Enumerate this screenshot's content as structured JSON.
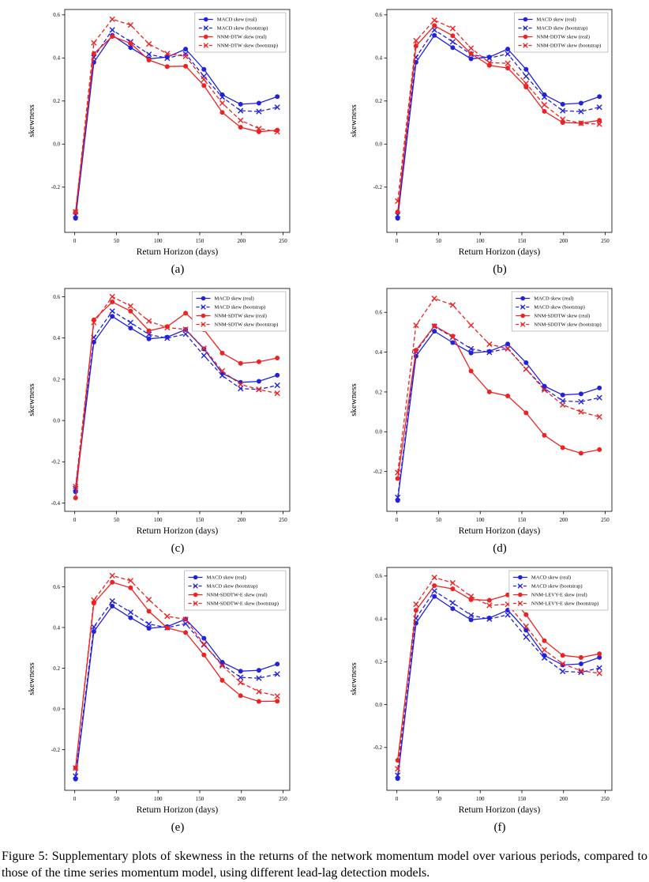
{
  "figure": {
    "caption": "Figure 5: Supplementary plots of skewness in the returns of the network momentum model over various periods, compared to those of the time series momentum model, using different lead-lag detection models.",
    "accent_colors": {
      "macd_blue": "#2222dd",
      "nnm_red": "#ee2222"
    }
  },
  "chart_data": [
    {
      "panel_label": "(a)",
      "type": "line",
      "xlabel": "Return Horizon (days)",
      "ylabel": "skewness",
      "x": [
        1,
        23,
        45,
        67,
        89,
        111,
        133,
        155,
        177,
        199,
        221,
        243
      ],
      "xlim": [
        -12,
        258
      ],
      "ylim": [
        -0.41,
        0.625
      ],
      "xticks": [
        0,
        50,
        100,
        150,
        200,
        250
      ],
      "yticks": [
        -0.2,
        0.0,
        0.2,
        0.4,
        0.6
      ],
      "grid": false,
      "legend_position": "upper right",
      "series": [
        {
          "name": "MACD skew (real)",
          "color": "#2222dd",
          "line": "solid",
          "marker": "circle",
          "values": [
            -0.345,
            0.38,
            0.505,
            0.448,
            0.396,
            0.404,
            0.441,
            0.347,
            0.229,
            0.185,
            0.19,
            0.22
          ]
        },
        {
          "name": "MACD skew (bootstrap)",
          "color": "#2222dd",
          "line": "dashed",
          "marker": "x",
          "values": [
            -0.33,
            0.403,
            0.53,
            0.475,
            0.417,
            0.399,
            0.419,
            0.315,
            0.218,
            0.155,
            0.151,
            0.171
          ]
        },
        {
          "name": "NNM-DTW skew (real)",
          "color": "#ee2222",
          "line": "solid",
          "marker": "circle",
          "values": [
            -0.315,
            0.42,
            0.5,
            0.468,
            0.39,
            0.36,
            0.362,
            0.272,
            0.147,
            0.078,
            0.057,
            0.065
          ]
        },
        {
          "name": "NNM-DTW skew (bootstrap)",
          "color": "#ee2222",
          "line": "dashed",
          "marker": "x",
          "values": [
            -0.315,
            0.47,
            0.58,
            0.553,
            0.465,
            0.42,
            0.408,
            0.3,
            0.19,
            0.11,
            0.072,
            0.057
          ]
        }
      ]
    },
    {
      "panel_label": "(b)",
      "type": "line",
      "xlabel": "Return Horizon (days)",
      "ylabel": "skewness",
      "x": [
        1,
        23,
        45,
        67,
        89,
        111,
        133,
        155,
        177,
        199,
        221,
        243
      ],
      "xlim": [
        -12,
        258
      ],
      "ylim": [
        -0.41,
        0.625
      ],
      "xticks": [
        0,
        50,
        100,
        150,
        200,
        250
      ],
      "yticks": [
        -0.2,
        0.0,
        0.2,
        0.4,
        0.6
      ],
      "grid": false,
      "legend_position": "upper right",
      "series": [
        {
          "name": "MACD skew (real)",
          "color": "#2222dd",
          "line": "solid",
          "marker": "circle",
          "values": [
            -0.345,
            0.38,
            0.505,
            0.448,
            0.396,
            0.404,
            0.441,
            0.347,
            0.229,
            0.185,
            0.19,
            0.22
          ]
        },
        {
          "name": "MACD skew (bootstrap)",
          "color": "#2222dd",
          "line": "dashed",
          "marker": "x",
          "values": [
            -0.33,
            0.403,
            0.53,
            0.475,
            0.417,
            0.399,
            0.419,
            0.315,
            0.218,
            0.155,
            0.151,
            0.171
          ]
        },
        {
          "name": "NNM-DDTW skew (real)",
          "color": "#ee2222",
          "line": "solid",
          "marker": "circle",
          "values": [
            -0.315,
            0.455,
            0.55,
            0.503,
            0.42,
            0.365,
            0.353,
            0.265,
            0.152,
            0.1,
            0.097,
            0.11
          ]
        },
        {
          "name": "NNM-DDTW skew (bootstrap)",
          "color": "#ee2222",
          "line": "dashed",
          "marker": "x",
          "values": [
            -0.265,
            0.48,
            0.575,
            0.537,
            0.445,
            0.378,
            0.375,
            0.282,
            0.182,
            0.115,
            0.097,
            0.092
          ]
        }
      ]
    },
    {
      "panel_label": "(c)",
      "type": "line",
      "xlabel": "Return Horizon (days)",
      "ylabel": "skewness",
      "x": [
        1,
        23,
        45,
        67,
        89,
        111,
        133,
        155,
        177,
        199,
        221,
        243
      ],
      "xlim": [
        -12,
        258
      ],
      "ylim": [
        -0.44,
        0.64
      ],
      "xticks": [
        0,
        50,
        100,
        150,
        200,
        250
      ],
      "yticks": [
        -0.4,
        -0.2,
        0.0,
        0.2,
        0.4,
        0.6
      ],
      "grid": false,
      "legend_position": "upper right",
      "series": [
        {
          "name": "MACD skew (real)",
          "color": "#2222dd",
          "line": "solid",
          "marker": "circle",
          "values": [
            -0.345,
            0.38,
            0.505,
            0.448,
            0.396,
            0.404,
            0.441,
            0.347,
            0.229,
            0.185,
            0.19,
            0.22
          ]
        },
        {
          "name": "MACD skew (bootstrap)",
          "color": "#2222dd",
          "line": "dashed",
          "marker": "x",
          "values": [
            -0.33,
            0.403,
            0.53,
            0.475,
            0.417,
            0.399,
            0.419,
            0.315,
            0.218,
            0.155,
            0.151,
            0.171
          ]
        },
        {
          "name": "NNM-SDTW skew (real)",
          "color": "#ee2222",
          "line": "solid",
          "marker": "circle",
          "values": [
            -0.375,
            0.488,
            0.575,
            0.53,
            0.435,
            0.455,
            0.52,
            0.44,
            0.327,
            0.277,
            0.285,
            0.303
          ]
        },
        {
          "name": "NNM-SDTW skew (bootstrap)",
          "color": "#ee2222",
          "line": "dashed",
          "marker": "x",
          "values": [
            -0.32,
            0.475,
            0.6,
            0.555,
            0.482,
            0.45,
            0.442,
            0.35,
            0.24,
            0.175,
            0.15,
            0.132
          ]
        }
      ]
    },
    {
      "panel_label": "(d)",
      "type": "line",
      "xlabel": "Return Horizon (days)",
      "ylabel": "skewness",
      "x": [
        1,
        23,
        45,
        67,
        89,
        111,
        133,
        155,
        177,
        199,
        221,
        243
      ],
      "xlim": [
        -12,
        258
      ],
      "ylim": [
        -0.4,
        0.72
      ],
      "xticks": [
        0,
        50,
        100,
        150,
        200,
        250
      ],
      "yticks": [
        -0.2,
        0.0,
        0.2,
        0.4,
        0.6
      ],
      "grid": false,
      "legend_position": "upper right",
      "series": [
        {
          "name": "MACD skew (real)",
          "color": "#2222dd",
          "line": "solid",
          "marker": "circle",
          "values": [
            -0.345,
            0.38,
            0.505,
            0.448,
            0.396,
            0.404,
            0.441,
            0.347,
            0.229,
            0.185,
            0.19,
            0.22
          ]
        },
        {
          "name": "MACD skew (bootstrap)",
          "color": "#2222dd",
          "line": "dashed",
          "marker": "x",
          "values": [
            -0.33,
            0.403,
            0.53,
            0.475,
            0.417,
            0.399,
            0.419,
            0.315,
            0.218,
            0.155,
            0.151,
            0.171
          ]
        },
        {
          "name": "NNM-SDDTW skew (real)",
          "color": "#ee2222",
          "line": "solid",
          "marker": "circle",
          "values": [
            -0.235,
            0.41,
            0.532,
            0.48,
            0.305,
            0.2,
            0.18,
            0.095,
            -0.018,
            -0.08,
            -0.108,
            -0.09
          ]
        },
        {
          "name": "NNM-SDDTW skew (bootstrap)",
          "color": "#ee2222",
          "line": "dashed",
          "marker": "x",
          "values": [
            -0.205,
            0.535,
            0.67,
            0.637,
            0.535,
            0.44,
            0.417,
            0.315,
            0.21,
            0.135,
            0.1,
            0.075
          ]
        }
      ]
    },
    {
      "panel_label": "(e)",
      "type": "line",
      "xlabel": "Return Horizon (days)",
      "ylabel": "skewness",
      "x": [
        1,
        23,
        45,
        67,
        89,
        111,
        133,
        155,
        177,
        199,
        221,
        243
      ],
      "xlim": [
        -12,
        258
      ],
      "ylim": [
        -0.4,
        0.695
      ],
      "xticks": [
        0,
        50,
        100,
        150,
        200,
        250
      ],
      "yticks": [
        -0.2,
        0.0,
        0.2,
        0.4,
        0.6
      ],
      "grid": false,
      "legend_position": "upper right",
      "series": [
        {
          "name": "MACD skew (real)",
          "color": "#2222dd",
          "line": "solid",
          "marker": "circle",
          "values": [
            -0.345,
            0.38,
            0.505,
            0.448,
            0.396,
            0.404,
            0.441,
            0.347,
            0.229,
            0.185,
            0.19,
            0.22
          ]
        },
        {
          "name": "MACD skew (bootstrap)",
          "color": "#2222dd",
          "line": "dashed",
          "marker": "x",
          "values": [
            -0.33,
            0.403,
            0.53,
            0.475,
            0.417,
            0.399,
            0.419,
            0.315,
            0.218,
            0.155,
            0.151,
            0.171
          ]
        },
        {
          "name": "NNM-SDDTW-E skew (real)",
          "color": "#ee2222",
          "line": "solid",
          "marker": "circle",
          "values": [
            -0.29,
            0.52,
            0.622,
            0.595,
            0.48,
            0.398,
            0.375,
            0.265,
            0.14,
            0.065,
            0.037,
            0.038
          ]
        },
        {
          "name": "NNM-SDDTW-E skew (bootstrap)",
          "color": "#ee2222",
          "line": "dashed",
          "marker": "x",
          "values": [
            -0.29,
            0.535,
            0.655,
            0.63,
            0.537,
            0.455,
            0.44,
            0.318,
            0.212,
            0.13,
            0.085,
            0.063
          ]
        }
      ]
    },
    {
      "panel_label": "(f)",
      "type": "line",
      "xlabel": "Return Horizon (days)",
      "ylabel": "skewness",
      "x": [
        1,
        23,
        45,
        67,
        89,
        111,
        133,
        155,
        177,
        199,
        221,
        243
      ],
      "xlim": [
        -12,
        258
      ],
      "ylim": [
        -0.4,
        0.64
      ],
      "xticks": [
        0,
        50,
        100,
        150,
        200,
        250
      ],
      "yticks": [
        -0.2,
        0.0,
        0.2,
        0.4,
        0.6
      ],
      "grid": false,
      "legend_position": "upper right",
      "series": [
        {
          "name": "MACD skew (real)",
          "color": "#2222dd",
          "line": "solid",
          "marker": "circle",
          "values": [
            -0.345,
            0.38,
            0.505,
            0.448,
            0.396,
            0.404,
            0.441,
            0.347,
            0.229,
            0.185,
            0.19,
            0.22
          ]
        },
        {
          "name": "MACD skew (bootstrap)",
          "color": "#2222dd",
          "line": "dashed",
          "marker": "x",
          "values": [
            -0.33,
            0.403,
            0.53,
            0.475,
            0.417,
            0.399,
            0.419,
            0.315,
            0.218,
            0.155,
            0.151,
            0.171
          ]
        },
        {
          "name": "NNM-LEVY-E skew (real)",
          "color": "#ee2222",
          "line": "solid",
          "marker": "circle",
          "values": [
            -0.26,
            0.44,
            0.555,
            0.54,
            0.49,
            0.487,
            0.512,
            0.42,
            0.298,
            0.23,
            0.22,
            0.237
          ]
        },
        {
          "name": "NNM-LEVY-E skew (bootstrap)",
          "color": "#ee2222",
          "line": "dashed",
          "marker": "x",
          "values": [
            -0.3,
            0.468,
            0.593,
            0.568,
            0.505,
            0.463,
            0.468,
            0.365,
            0.255,
            0.19,
            0.158,
            0.146
          ]
        }
      ]
    }
  ]
}
